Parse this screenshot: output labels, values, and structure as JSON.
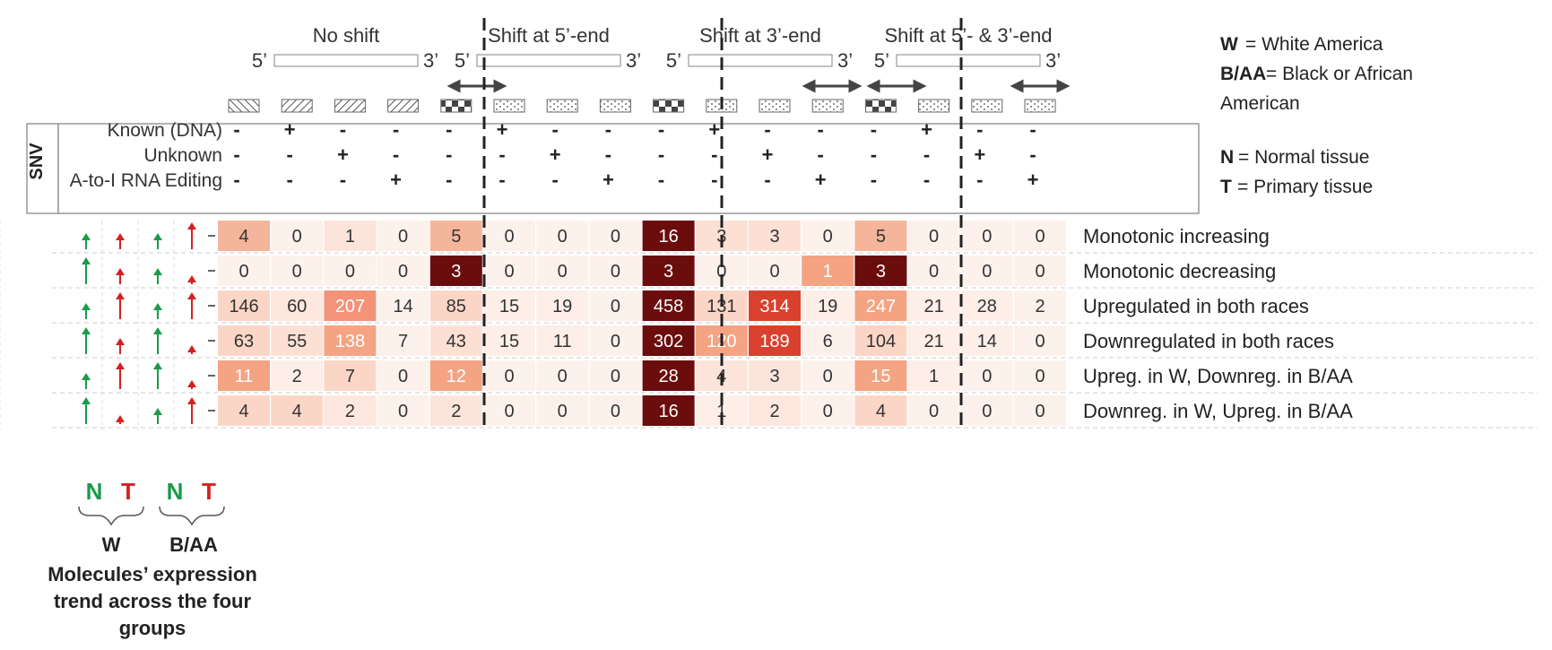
{
  "groups": [
    {
      "title": "No shift",
      "end5": "5’",
      "end3": "3’",
      "arrows": "none"
    },
    {
      "title": "Shift at 5’-end",
      "end5": "5’",
      "end3": "3’",
      "arrows": "left"
    },
    {
      "title": "Shift at 3’-end",
      "end5": "5’",
      "end3": "3’",
      "arrows": "right"
    },
    {
      "title": "Shift at 5’- & 3’-end",
      "end5": "5’",
      "end3": "3’",
      "arrows": "both"
    }
  ],
  "snv": {
    "label": "SNV",
    "rows": [
      {
        "label": "Known (DNA)",
        "marks": [
          "-",
          "+",
          "-",
          "-"
        ]
      },
      {
        "label": "Unknown",
        "marks": [
          "-",
          "-",
          "+",
          "-"
        ]
      },
      {
        "label": "A-to-I RNA Editing",
        "marks": [
          "-",
          "-",
          "-",
          "+"
        ]
      }
    ]
  },
  "legend": {
    "w_key": "W",
    "w_text": " = White America",
    "baa_key": "B/AA",
    "baa_text_1": " = Black or African",
    "baa_text_2": "American",
    "n_key": "N",
    "n_text": " = Normal tissue",
    "t_key": "T",
    "t_text": " = Primary tissue",
    "n_color": "#1a9a4a",
    "t_color": "#d42020"
  },
  "bottom": {
    "labels": [
      "N",
      "T",
      "N",
      "T"
    ],
    "w": "W",
    "baa": "B/AA",
    "caption": [
      "Molecules’ expression",
      "trend across the four",
      "groups"
    ]
  },
  "trend_arrows": [
    [
      "up-small",
      "up-small",
      "up-small",
      "up-large"
    ],
    [
      "up-large",
      "up-small",
      "up-small",
      "up-tiny"
    ],
    [
      "up-small",
      "up-large",
      "up-small",
      "up-large"
    ],
    [
      "up-large",
      "up-small",
      "up-large",
      "up-tiny"
    ],
    [
      "up-small",
      "up-large",
      "up-large",
      "up-tiny"
    ],
    [
      "up-large",
      "up-tiny",
      "up-small",
      "up-large"
    ]
  ],
  "chart_data": {
    "type": "heatmap",
    "rows": [
      "Monotonic increasing",
      "Monotonic decreasing",
      "Upregulated in both races",
      "Downregulated in both races",
      "Upreg. in W, Downreg. in B/AA",
      "Downreg. in W, Upreg. in B/AA"
    ],
    "values": [
      [
        4,
        0,
        1,
        0,
        5,
        0,
        0,
        0,
        16,
        3,
        3,
        0,
        5,
        0,
        0,
        0
      ],
      [
        0,
        0,
        0,
        0,
        3,
        0,
        0,
        0,
        3,
        0,
        0,
        1,
        3,
        0,
        0,
        0
      ],
      [
        146,
        60,
        207,
        14,
        85,
        15,
        19,
        0,
        458,
        131,
        314,
        19,
        247,
        21,
        28,
        2
      ],
      [
        63,
        55,
        138,
        7,
        43,
        15,
        11,
        0,
        302,
        120,
        189,
        6,
        104,
        21,
        14,
        0
      ],
      [
        11,
        2,
        7,
        0,
        12,
        0,
        0,
        0,
        28,
        4,
        3,
        0,
        15,
        1,
        0,
        0
      ],
      [
        4,
        4,
        2,
        0,
        2,
        0,
        0,
        0,
        16,
        1,
        2,
        0,
        4,
        0,
        0,
        0
      ]
    ],
    "color_levels": [
      [
        "#f4b59a",
        "#fdf1ec",
        "#fce4da",
        "#fdf1ec",
        "#f4b59a",
        "#fdf1ec",
        "#fdf1ec",
        "#fdf1ec",
        "#6b0d0d",
        "#fce0d4",
        "#fce0d4",
        "#fdf1ec",
        "#f4b59a",
        "#fdf1ec",
        "#fdf1ec",
        "#fdf1ec"
      ],
      [
        "#fdf1ec",
        "#fdf1ec",
        "#fdf1ec",
        "#fdf1ec",
        "#6b0d0d",
        "#fdf1ec",
        "#fdf1ec",
        "#fdf1ec",
        "#6b0d0d",
        "#fdf1ec",
        "#fdf1ec",
        "#f4a383",
        "#6b0d0d",
        "#fdf1ec",
        "#fdf1ec",
        "#fdf1ec"
      ],
      [
        "#fbd6c6",
        "#fde7de",
        "#f2937a",
        "#fdf1ec",
        "#fbd6c6",
        "#fdeee8",
        "#fdeee8",
        "#fdf1ec",
        "#6b0d0d",
        "#fbd6c6",
        "#d9412e",
        "#fdeee8",
        "#f4a383",
        "#fdeee8",
        "#fdeee8",
        "#fdf1ec"
      ],
      [
        "#fbd6c6",
        "#fce0d4",
        "#f4a383",
        "#fdf1ec",
        "#fce0d4",
        "#fdeee8",
        "#fdeee8",
        "#fdf1ec",
        "#6b0d0d",
        "#f4a383",
        "#d9412e",
        "#fdf1ec",
        "#fbd6c6",
        "#fdeee8",
        "#fdeee8",
        "#fdf1ec"
      ],
      [
        "#f4a383",
        "#fdeee8",
        "#fbd6c6",
        "#fdf1ec",
        "#f4a383",
        "#fdf1ec",
        "#fdf1ec",
        "#fdf1ec",
        "#6b0d0d",
        "#fce4da",
        "#fce4da",
        "#fdf1ec",
        "#f4a383",
        "#fdeee8",
        "#fdf1ec",
        "#fdf1ec"
      ],
      [
        "#fbd6c6",
        "#fbd6c6",
        "#fde7de",
        "#fdf1ec",
        "#fce4da",
        "#fdf1ec",
        "#fdf1ec",
        "#fdf1ec",
        "#6b0d0d",
        "#fdeee8",
        "#fde7de",
        "#fdf1ec",
        "#fbd6c6",
        "#fdf1ec",
        "#fdf1ec",
        "#fdf1ec"
      ]
    ],
    "light_text_color": "#ffffff",
    "dark_text_color": "#333333"
  }
}
